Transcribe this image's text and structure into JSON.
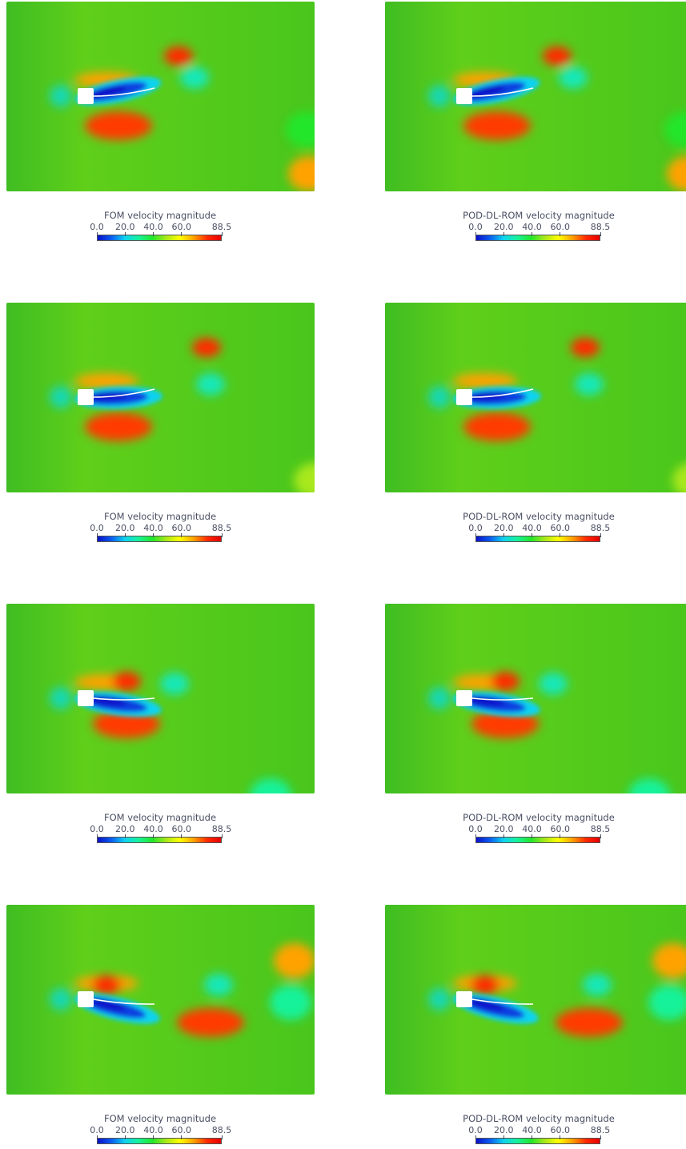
{
  "colormap": {
    "min": 0.0,
    "max": 88.5,
    "ticks": [
      "0.0",
      "20.0",
      "40.0",
      "60.0",
      "88.5"
    ],
    "tick_values": [
      0.0,
      20.0,
      40.0,
      60.0,
      88.5
    ],
    "colors": [
      "#0a11c9",
      "#0b5cf0",
      "#0fd3f0",
      "#17f29a",
      "#22e62a",
      "#a8e81a",
      "#ffff00",
      "#ffa200",
      "#ff2a00",
      "#e60000"
    ]
  },
  "background_color": "#45c51e",
  "rows": [
    {
      "left_title": "FOM velocity magnitude",
      "right_title": "POD-DL-ROM velocity magnitude"
    },
    {
      "left_title": "FOM velocity magnitude",
      "right_title": "POD-DL-ROM velocity magnitude"
    },
    {
      "left_title": "FOM velocity magnitude",
      "right_title": "POD-DL-ROM velocity magnitude"
    },
    {
      "left_title": "FOM velocity magnitude",
      "right_title": "POD-DL-ROM velocity magnitude"
    }
  ]
}
